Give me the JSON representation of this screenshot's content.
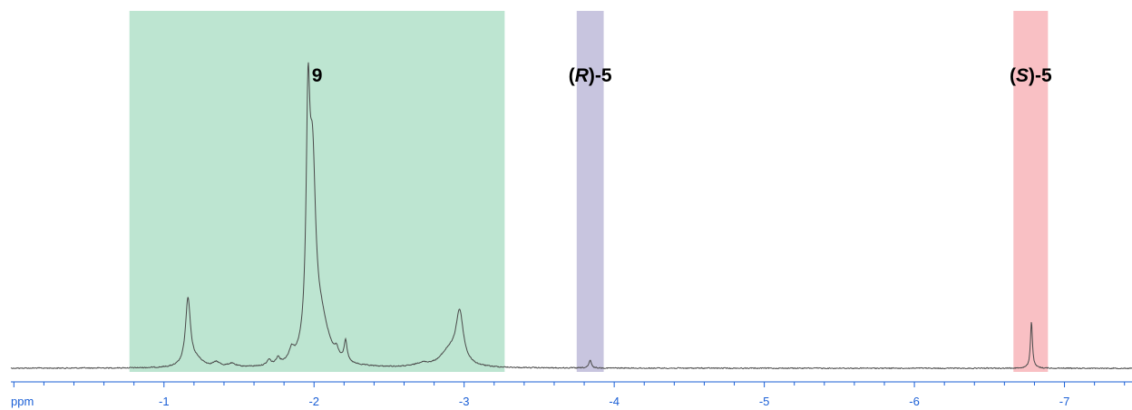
{
  "chart_data": {
    "type": "line",
    "xlabel": "ppm",
    "xlim": [
      0.02,
      -7.45
    ],
    "x_reversed": true,
    "y_axis_shown": false,
    "grid": false,
    "x_ticks": [
      -1,
      -2,
      -3,
      -4,
      -5,
      -6,
      -7
    ],
    "x_tick_labels": [
      "-1",
      "-2",
      "-3",
      "-4",
      "-5",
      "-6",
      "-7"
    ],
    "regions": [
      {
        "label_parts": [
          {
            "text": "9",
            "italic": false
          }
        ],
        "from": -0.77,
        "to": -3.27,
        "color": "#bde5d1"
      },
      {
        "label_parts": [
          {
            "text": "(",
            "italic": false
          },
          {
            "text": "R",
            "italic": true
          },
          {
            "text": ")-5",
            "italic": false
          }
        ],
        "from": -3.75,
        "to": -3.93,
        "color": "#c8c5df"
      },
      {
        "label_parts": [
          {
            "text": "(",
            "italic": false
          },
          {
            "text": "S",
            "italic": true
          },
          {
            "text": ")-5",
            "italic": false
          }
        ],
        "from": -6.66,
        "to": -6.89,
        "color": "#f9c0c4"
      }
    ],
    "peaks": [
      {
        "x": -1.16,
        "height": 62,
        "width": 0.02
      },
      {
        "x": -1.22,
        "height": 6,
        "width": 0.05
      },
      {
        "x": -1.96,
        "height": 200,
        "width": 0.015
      },
      {
        "x": -1.99,
        "height": 165,
        "width": 0.025
      },
      {
        "x": -2.05,
        "height": 35,
        "width": 0.06
      },
      {
        "x": -1.85,
        "height": 10,
        "width": 0.02
      },
      {
        "x": -1.76,
        "height": 6,
        "width": 0.015
      },
      {
        "x": -1.7,
        "height": 5,
        "width": 0.015
      },
      {
        "x": -2.21,
        "height": 19,
        "width": 0.012
      },
      {
        "x": -2.15,
        "height": 7,
        "width": 0.015
      },
      {
        "x": -1.35,
        "height": 4,
        "width": 0.03
      },
      {
        "x": -1.45,
        "height": 3,
        "width": 0.03
      },
      {
        "x": -2.97,
        "height": 47,
        "width": 0.03
      },
      {
        "x": -2.9,
        "height": 14,
        "width": 0.07
      },
      {
        "x": -2.72,
        "height": 3,
        "width": 0.05
      },
      {
        "x": -3.84,
        "height": 7,
        "width": 0.01
      },
      {
        "x": -6.78,
        "height": 43,
        "width": 0.008
      },
      {
        "x": 0.35,
        "height": 2,
        "width": 0.03
      }
    ],
    "line_color": "#4a4a4a",
    "tick_color": "#1a5fd6"
  }
}
